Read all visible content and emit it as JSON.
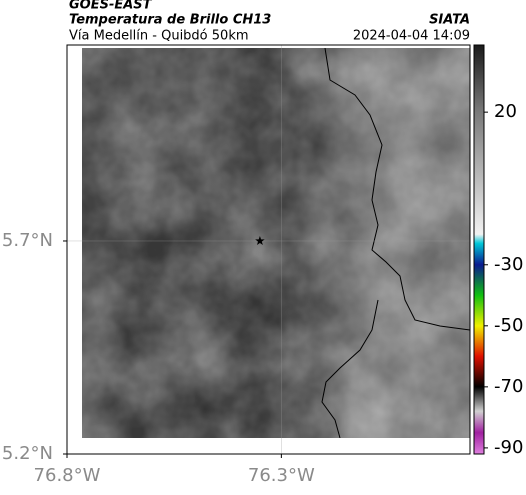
{
  "header": {
    "title": "GOES-EAST",
    "subtitle": "Temperatura de Brillo CH13",
    "region": "Vía Medellín - Quibdó 50km",
    "source": "SIATA",
    "datetime": "2024-04-04 14:09"
  },
  "map": {
    "xlim": [
      -76.8,
      -75.86
    ],
    "ylim": [
      5.2,
      6.16
    ],
    "xticks": [
      {
        "value": -76.8,
        "label": "76.8°W"
      },
      {
        "value": -76.3,
        "label": "76.3°W"
      }
    ],
    "yticks": [
      {
        "value": 5.2,
        "label": "5.2°N"
      },
      {
        "value": 5.7,
        "label": "5.7°N"
      }
    ],
    "grid": true,
    "marker": {
      "lon": -76.35,
      "lat": 5.7
    }
  },
  "colorbar": {
    "clim": [
      -92,
      42
    ],
    "ticks": [
      20,
      -30,
      -50,
      -70,
      -90
    ],
    "stops": [
      {
        "value": 42,
        "color": "#1a1a1a"
      },
      {
        "value": 20,
        "color": "#7a7a7a"
      },
      {
        "value": -20,
        "color": "#f2f2f2"
      },
      {
        "value": -23,
        "color": "#00c8d8"
      },
      {
        "value": -30,
        "color": "#0a1a90"
      },
      {
        "value": -40,
        "color": "#10c010"
      },
      {
        "value": -50,
        "color": "#f0f000"
      },
      {
        "value": -60,
        "color": "#e01000"
      },
      {
        "value": -70,
        "color": "#000000"
      },
      {
        "value": -78,
        "color": "#d0d0d0"
      },
      {
        "value": -85,
        "color": "#a020a0"
      },
      {
        "value": -92,
        "color": "#e080e0"
      }
    ]
  }
}
